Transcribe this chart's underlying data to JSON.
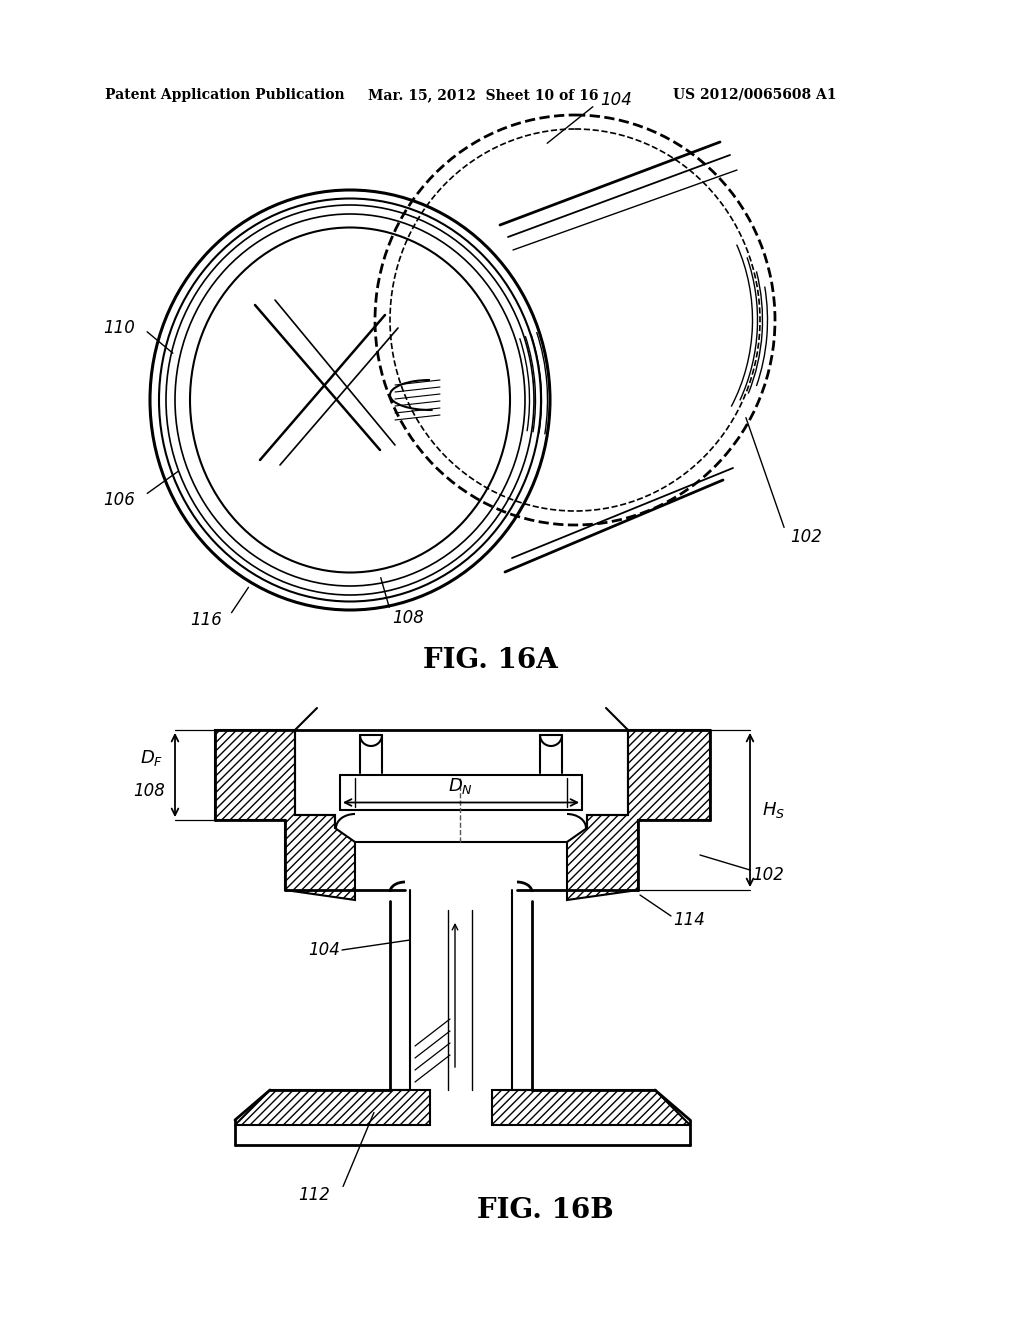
{
  "bg_color": "#ffffff",
  "header_text": "Patent Application Publication",
  "header_date": "Mar. 15, 2012  Sheet 10 of 16",
  "header_patent": "US 2012/0065608 A1",
  "fig_label_A": "FIG. 16A",
  "fig_label_B": "FIG. 16B"
}
